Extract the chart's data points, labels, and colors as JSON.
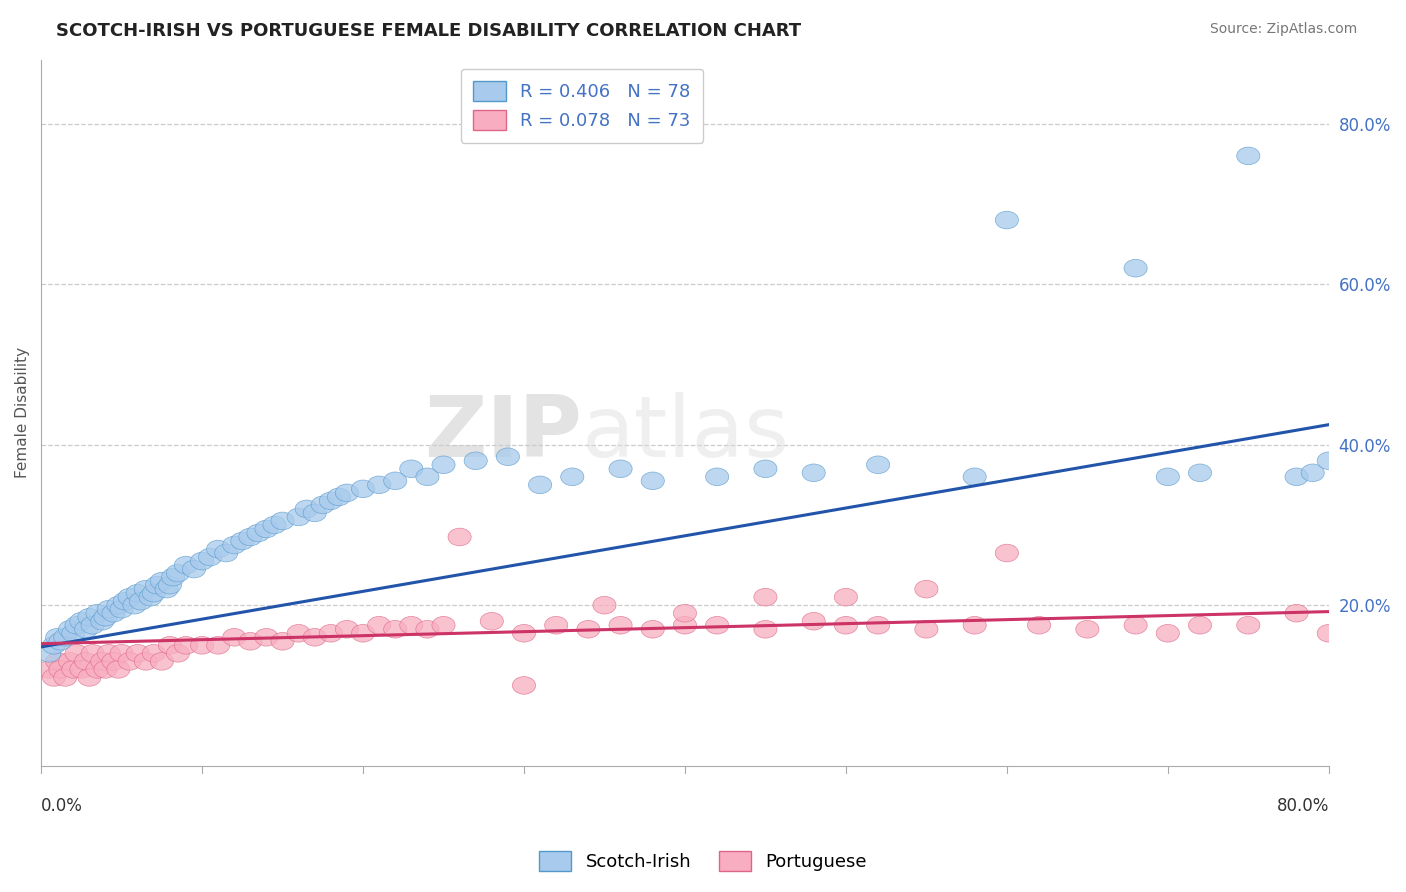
{
  "title": "SCOTCH-IRISH VS PORTUGUESE FEMALE DISABILITY CORRELATION CHART",
  "source": "Source: ZipAtlas.com",
  "ylabel": "Female Disability",
  "xmin": 0.0,
  "xmax": 0.8,
  "ymin": 0.0,
  "ymax": 0.88,
  "scotch_irish_R": 0.406,
  "scotch_irish_N": 78,
  "portuguese_R": 0.078,
  "portuguese_N": 73,
  "scotch_irish_color": "#a8caec",
  "portuguese_color": "#f8aec0",
  "scotch_irish_edge_color": "#5599cc",
  "portuguese_edge_color": "#dd6688",
  "scotch_irish_line_color": "#2255aa",
  "portuguese_line_color": "#cc3366",
  "background_color": "#ffffff",
  "grid_color": "#cccccc",
  "axis_label_color": "#4472c4",
  "si_line_x0": 0.0,
  "si_line_x1": 0.8,
  "si_line_y0": 0.148,
  "si_line_y1": 0.425,
  "pt_line_x0": 0.0,
  "pt_line_x1": 0.8,
  "pt_line_y0": 0.152,
  "pt_line_y1": 0.192,
  "scotch_irish_x": [
    0.005,
    0.008,
    0.01,
    0.012,
    0.015,
    0.018,
    0.02,
    0.022,
    0.025,
    0.028,
    0.03,
    0.032,
    0.035,
    0.038,
    0.04,
    0.042,
    0.045,
    0.048,
    0.05,
    0.052,
    0.055,
    0.058,
    0.06,
    0.062,
    0.065,
    0.068,
    0.07,
    0.072,
    0.075,
    0.078,
    0.08,
    0.082,
    0.085,
    0.09,
    0.095,
    0.1,
    0.105,
    0.11,
    0.115,
    0.12,
    0.125,
    0.13,
    0.135,
    0.14,
    0.145,
    0.15,
    0.16,
    0.165,
    0.17,
    0.175,
    0.18,
    0.185,
    0.19,
    0.2,
    0.21,
    0.22,
    0.23,
    0.24,
    0.25,
    0.27,
    0.29,
    0.31,
    0.33,
    0.36,
    0.38,
    0.42,
    0.45,
    0.48,
    0.52,
    0.58,
    0.6,
    0.68,
    0.7,
    0.72,
    0.75,
    0.78,
    0.79,
    0.8
  ],
  "scotch_irish_y": [
    0.14,
    0.15,
    0.16,
    0.155,
    0.16,
    0.17,
    0.165,
    0.175,
    0.18,
    0.17,
    0.185,
    0.175,
    0.19,
    0.18,
    0.185,
    0.195,
    0.19,
    0.2,
    0.195,
    0.205,
    0.21,
    0.2,
    0.215,
    0.205,
    0.22,
    0.21,
    0.215,
    0.225,
    0.23,
    0.22,
    0.225,
    0.235,
    0.24,
    0.25,
    0.245,
    0.255,
    0.26,
    0.27,
    0.265,
    0.275,
    0.28,
    0.285,
    0.29,
    0.295,
    0.3,
    0.305,
    0.31,
    0.32,
    0.315,
    0.325,
    0.33,
    0.335,
    0.34,
    0.345,
    0.35,
    0.355,
    0.37,
    0.36,
    0.375,
    0.38,
    0.385,
    0.35,
    0.36,
    0.37,
    0.355,
    0.36,
    0.37,
    0.365,
    0.375,
    0.36,
    0.68,
    0.62,
    0.36,
    0.365,
    0.76,
    0.36,
    0.365,
    0.38
  ],
  "portuguese_x": [
    0.005,
    0.008,
    0.01,
    0.012,
    0.015,
    0.018,
    0.02,
    0.022,
    0.025,
    0.028,
    0.03,
    0.032,
    0.035,
    0.038,
    0.04,
    0.042,
    0.045,
    0.048,
    0.05,
    0.055,
    0.06,
    0.065,
    0.07,
    0.075,
    0.08,
    0.085,
    0.09,
    0.1,
    0.11,
    0.12,
    0.13,
    0.14,
    0.15,
    0.16,
    0.17,
    0.18,
    0.19,
    0.2,
    0.21,
    0.22,
    0.23,
    0.24,
    0.25,
    0.26,
    0.28,
    0.3,
    0.32,
    0.34,
    0.36,
    0.38,
    0.4,
    0.42,
    0.45,
    0.48,
    0.5,
    0.52,
    0.55,
    0.58,
    0.62,
    0.65,
    0.68,
    0.7,
    0.72,
    0.75,
    0.78,
    0.8,
    0.6,
    0.55,
    0.5,
    0.45,
    0.4,
    0.35,
    0.3
  ],
  "portuguese_y": [
    0.12,
    0.11,
    0.13,
    0.12,
    0.11,
    0.13,
    0.12,
    0.14,
    0.12,
    0.13,
    0.11,
    0.14,
    0.12,
    0.13,
    0.12,
    0.14,
    0.13,
    0.12,
    0.14,
    0.13,
    0.14,
    0.13,
    0.14,
    0.13,
    0.15,
    0.14,
    0.15,
    0.15,
    0.15,
    0.16,
    0.155,
    0.16,
    0.155,
    0.165,
    0.16,
    0.165,
    0.17,
    0.165,
    0.175,
    0.17,
    0.175,
    0.17,
    0.175,
    0.285,
    0.18,
    0.165,
    0.175,
    0.17,
    0.175,
    0.17,
    0.175,
    0.175,
    0.17,
    0.18,
    0.175,
    0.175,
    0.17,
    0.175,
    0.175,
    0.17,
    0.175,
    0.165,
    0.175,
    0.175,
    0.19,
    0.165,
    0.265,
    0.22,
    0.21,
    0.21,
    0.19,
    0.2,
    0.1
  ]
}
